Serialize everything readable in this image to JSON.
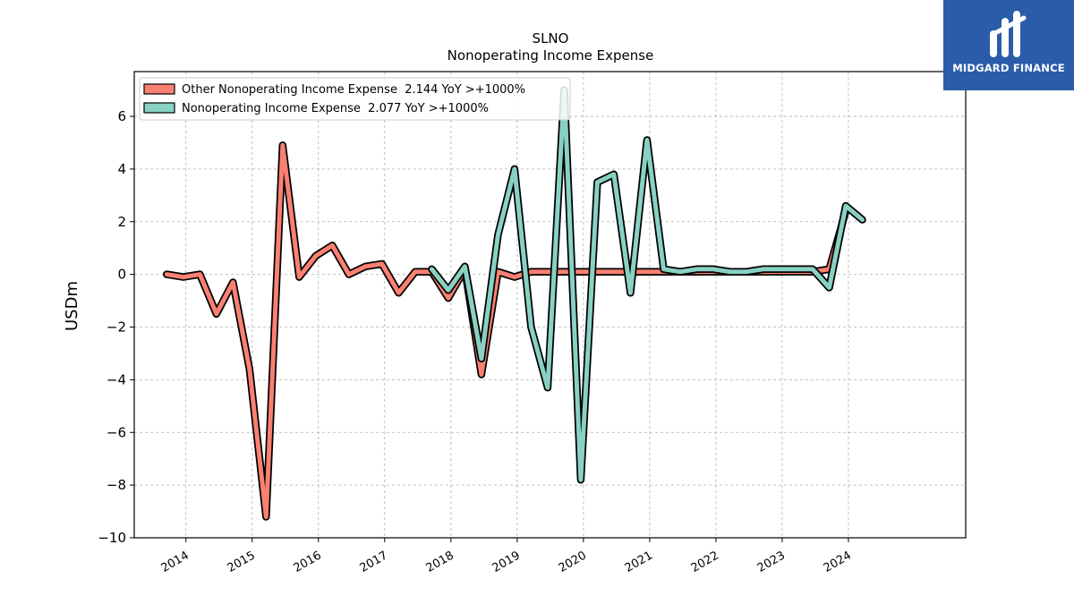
{
  "brand": {
    "name": "MIDGARD FINANCE",
    "background": "#2a5caa"
  },
  "chart_data": {
    "type": "line",
    "title": "SLNO",
    "subtitle": "Nonoperating Income Expense",
    "ylabel": "USDm",
    "xlabel": "",
    "ylim": [
      -10,
      7.7
    ],
    "yticks": [
      -10,
      -8,
      -6,
      -4,
      -2,
      0,
      2,
      4,
      6
    ],
    "ytick_labels": [
      "−10",
      "−8",
      "−6",
      "−4",
      "−2",
      "0",
      "2",
      "4",
      "6"
    ],
    "xlim": [
      2013.22,
      2025.77
    ],
    "xticks": [
      2014,
      2015,
      2016,
      2017,
      2018,
      2019,
      2020,
      2021,
      2022,
      2023,
      2024
    ],
    "xtick_labels": [
      "2014",
      "2015",
      "2016",
      "2017",
      "2018",
      "2019",
      "2020",
      "2021",
      "2022",
      "2023",
      "2024"
    ],
    "grid": true,
    "legend_position": "top-left",
    "series": [
      {
        "name": "Other Nonoperating Income Expense  2.144 YoY >+1000%",
        "color": "#fa8072",
        "x": [
          2013.71,
          2013.96,
          2014.21,
          2014.46,
          2014.71,
          2014.96,
          2015.21,
          2015.46,
          2015.71,
          2015.96,
          2016.21,
          2016.46,
          2016.71,
          2016.96,
          2017.21,
          2017.46,
          2017.71,
          2017.96,
          2018.21,
          2018.46,
          2018.71,
          2018.96,
          2019.21,
          2019.46,
          2019.71,
          2019.96,
          2020.21,
          2020.46,
          2020.71,
          2020.96,
          2021.21,
          2021.46,
          2021.71,
          2021.96,
          2022.21,
          2022.46,
          2022.71,
          2022.96,
          2023.21,
          2023.46,
          2023.71,
          2023.96
        ],
        "y": [
          0.0,
          -0.1,
          0.0,
          -1.5,
          -0.3,
          -3.6,
          -9.2,
          4.9,
          -0.1,
          0.7,
          1.1,
          0.0,
          0.3,
          0.4,
          -0.7,
          0.1,
          0.1,
          -0.9,
          0.2,
          -3.8,
          0.1,
          -0.1,
          0.1,
          0.1,
          0.1,
          0.1,
          0.1,
          0.1,
          0.1,
          0.1,
          0.1,
          0.1,
          0.1,
          0.1,
          0.1,
          0.1,
          0.1,
          0.1,
          0.1,
          0.1,
          0.2,
          2.4
        ]
      },
      {
        "name": "Nonoperating Income Expense  2.077 YoY >+1000%",
        "color": "#88d1c3",
        "x": [
          2017.71,
          2017.96,
          2018.21,
          2018.46,
          2018.71,
          2018.96,
          2019.21,
          2019.46,
          2019.71,
          2019.96,
          2020.21,
          2020.46,
          2020.71,
          2020.96,
          2021.21,
          2021.46,
          2021.71,
          2021.96,
          2022.21,
          2022.46,
          2022.71,
          2022.96,
          2023.21,
          2023.46,
          2023.71,
          2023.96,
          2024.21
        ],
        "y": [
          0.2,
          -0.6,
          0.3,
          -3.2,
          1.5,
          4.0,
          -2.0,
          -4.3,
          7.0,
          -7.8,
          3.5,
          3.8,
          -0.7,
          5.1,
          0.2,
          0.1,
          0.2,
          0.2,
          0.1,
          0.1,
          0.2,
          0.2,
          0.2,
          0.2,
          -0.5,
          2.6,
          2.077
        ]
      }
    ]
  }
}
